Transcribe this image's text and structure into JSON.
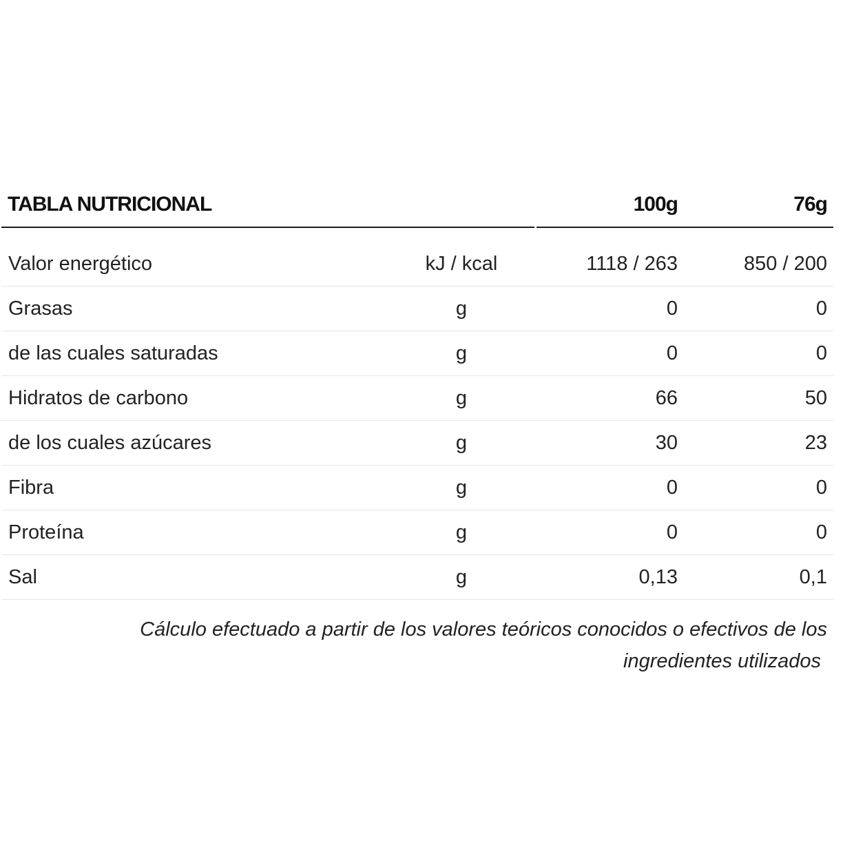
{
  "table": {
    "title": "TABLA NUTRICIONAL",
    "columns": {
      "per_100g": "100g",
      "per_76g": "76g"
    },
    "rows": [
      {
        "name": "Valor energético",
        "unit": "kJ / kcal",
        "per_100g": "1118 / 263",
        "per_76g": "850 / 200"
      },
      {
        "name": "Grasas",
        "unit": "g",
        "per_100g": "0",
        "per_76g": "0"
      },
      {
        "name": "de las cuales saturadas",
        "unit": "g",
        "per_100g": "0",
        "per_76g": "0"
      },
      {
        "name": "Hidratos de carbono",
        "unit": "g",
        "per_100g": "66",
        "per_76g": "50"
      },
      {
        "name": "de los cuales azúcares",
        "unit": "g",
        "per_100g": "30",
        "per_76g": "23"
      },
      {
        "name": "Fibra",
        "unit": "g",
        "per_100g": "0",
        "per_76g": "0"
      },
      {
        "name": "Proteína",
        "unit": "g",
        "per_100g": "0",
        "per_76g": "0"
      },
      {
        "name": "Sal",
        "unit": "g",
        "per_100g": "0,13",
        "per_76g": "0,1"
      }
    ],
    "footnote": {
      "line1": "Cálculo efectuado a partir de los valores teóricos conocidos o efectivos de los",
      "line2": "ingredientes utilizados"
    }
  }
}
